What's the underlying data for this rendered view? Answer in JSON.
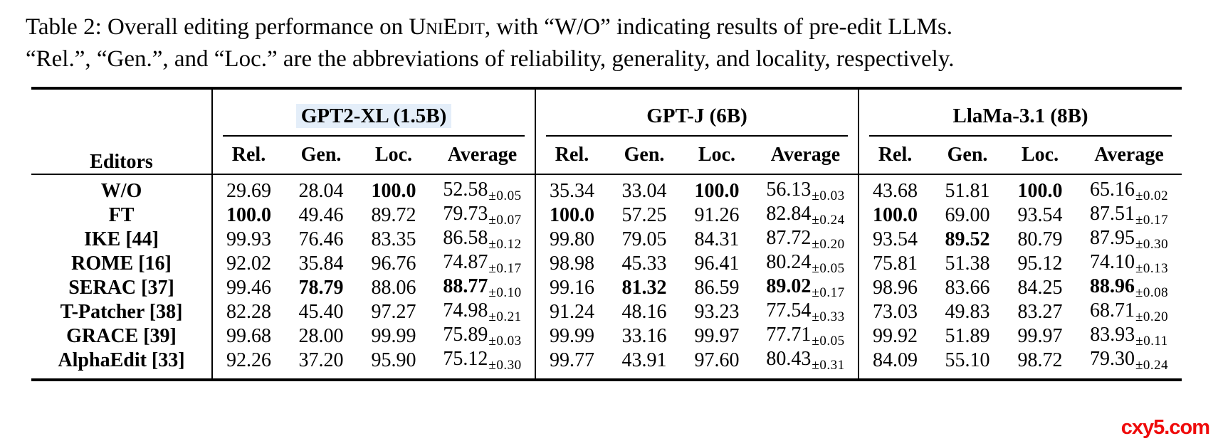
{
  "caption": {
    "line1_pre": "Table 2: Overall editing performance on ",
    "line1_smallcaps": "UniEdit",
    "line1_post": ", with “W/O” indicating results of pre-edit LLMs.",
    "line2": "“Rel.”, “Gen.”, and “Loc.” are the abbreviations of reliability, generality, and locality, respectively."
  },
  "table": {
    "editors_header": "Editors",
    "groups": [
      {
        "label": "GPT2-XL (1.5B)",
        "highlight": true
      },
      {
        "label": "GPT-J (6B)",
        "highlight": false
      },
      {
        "label": "LlaMa-3.1 (8B)",
        "highlight": false
      }
    ],
    "subheaders": [
      "Rel.",
      "Gen.",
      "Loc.",
      "Average"
    ],
    "rows": [
      {
        "editor": "W/O",
        "groups": [
          {
            "rel": "29.69",
            "gen": "28.04",
            "loc": "100.0",
            "avg": "52.58",
            "pm": "±0.05",
            "bold": [
              "loc"
            ]
          },
          {
            "rel": "35.34",
            "gen": "33.04",
            "loc": "100.0",
            "avg": "56.13",
            "pm": "±0.03",
            "bold": [
              "loc"
            ]
          },
          {
            "rel": "43.68",
            "gen": "51.81",
            "loc": "100.0",
            "avg": "65.16",
            "pm": "±0.02",
            "bold": [
              "loc"
            ]
          }
        ]
      },
      {
        "editor": "FT",
        "groups": [
          {
            "rel": "100.0",
            "gen": "49.46",
            "loc": "89.72",
            "avg": "79.73",
            "pm": "±0.07",
            "bold": [
              "rel"
            ]
          },
          {
            "rel": "100.0",
            "gen": "57.25",
            "loc": "91.26",
            "avg": "82.84",
            "pm": "±0.24",
            "bold": [
              "rel"
            ]
          },
          {
            "rel": "100.0",
            "gen": "69.00",
            "loc": "93.54",
            "avg": "87.51",
            "pm": "±0.17",
            "bold": [
              "rel"
            ]
          }
        ]
      },
      {
        "editor": "IKE [44]",
        "groups": [
          {
            "rel": "99.93",
            "gen": "76.46",
            "loc": "83.35",
            "avg": "86.58",
            "pm": "±0.12",
            "bold": []
          },
          {
            "rel": "99.80",
            "gen": "79.05",
            "loc": "84.31",
            "avg": "87.72",
            "pm": "±0.20",
            "bold": []
          },
          {
            "rel": "93.54",
            "gen": "89.52",
            "loc": "80.79",
            "avg": "87.95",
            "pm": "±0.30",
            "bold": [
              "gen"
            ]
          }
        ]
      },
      {
        "editor": "ROME [16]",
        "groups": [
          {
            "rel": "92.02",
            "gen": "35.84",
            "loc": "96.76",
            "avg": "74.87",
            "pm": "±0.17",
            "bold": []
          },
          {
            "rel": "98.98",
            "gen": "45.33",
            "loc": "96.41",
            "avg": "80.24",
            "pm": "±0.05",
            "bold": []
          },
          {
            "rel": "75.81",
            "gen": "51.38",
            "loc": "95.12",
            "avg": "74.10",
            "pm": "±0.13",
            "bold": []
          }
        ]
      },
      {
        "editor": "SERAC [37]",
        "groups": [
          {
            "rel": "99.46",
            "gen": "78.79",
            "loc": "88.06",
            "avg": "88.77",
            "pm": "±0.10",
            "bold": [
              "gen",
              "avg"
            ]
          },
          {
            "rel": "99.16",
            "gen": "81.32",
            "loc": "86.59",
            "avg": "89.02",
            "pm": "±0.17",
            "bold": [
              "gen",
              "avg"
            ]
          },
          {
            "rel": "98.96",
            "gen": "83.66",
            "loc": "84.25",
            "avg": "88.96",
            "pm": "±0.08",
            "bold": [
              "avg"
            ]
          }
        ]
      },
      {
        "editor": "T-Patcher [38]",
        "groups": [
          {
            "rel": "82.28",
            "gen": "45.40",
            "loc": "97.27",
            "avg": "74.98",
            "pm": "±0.21",
            "bold": []
          },
          {
            "rel": "91.24",
            "gen": "48.16",
            "loc": "93.23",
            "avg": "77.54",
            "pm": "±0.33",
            "bold": []
          },
          {
            "rel": "73.03",
            "gen": "49.83",
            "loc": "83.27",
            "avg": "68.71",
            "pm": "±0.20",
            "bold": []
          }
        ]
      },
      {
        "editor": "GRACE [39]",
        "groups": [
          {
            "rel": "99.68",
            "gen": "28.00",
            "loc": "99.99",
            "avg": "75.89",
            "pm": "±0.03",
            "bold": []
          },
          {
            "rel": "99.99",
            "gen": "33.16",
            "loc": "99.97",
            "avg": "77.71",
            "pm": "±0.05",
            "bold": []
          },
          {
            "rel": "99.92",
            "gen": "51.89",
            "loc": "99.97",
            "avg": "83.93",
            "pm": "±0.11",
            "bold": []
          }
        ]
      },
      {
        "editor": "AlphaEdit [33]",
        "groups": [
          {
            "rel": "92.26",
            "gen": "37.20",
            "loc": "95.90",
            "avg": "75.12",
            "pm": "±0.30",
            "bold": []
          },
          {
            "rel": "99.77",
            "gen": "43.91",
            "loc": "97.60",
            "avg": "80.43",
            "pm": "±0.31",
            "bold": []
          },
          {
            "rel": "84.09",
            "gen": "55.10",
            "loc": "98.72",
            "avg": "79.30",
            "pm": "±0.24",
            "bold": []
          }
        ]
      }
    ]
  },
  "watermark": "cxy5.com",
  "colors": {
    "text": "#000000",
    "highlight_blue": "#e4eef9",
    "watermark_red": "#ef0b0b"
  }
}
